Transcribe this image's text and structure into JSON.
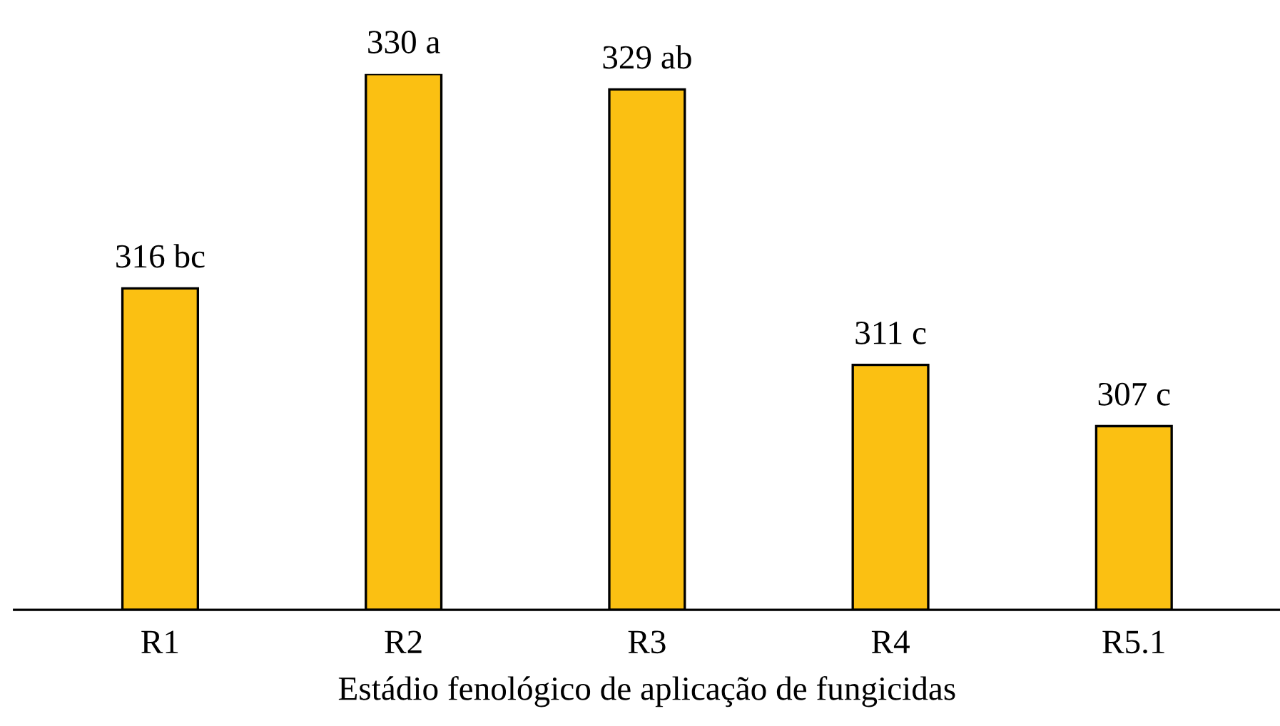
{
  "chart_data": {
    "type": "bar",
    "xlabel": "Estádio fenológico de aplicação de fungicidas",
    "categories": [
      "R1",
      "R2",
      "R3",
      "R4",
      "R5.1"
    ],
    "values": [
      316,
      330,
      329,
      311,
      307
    ],
    "value_labels": [
      "316 bc",
      "330 a",
      "329 ab",
      "311 c",
      "307 c"
    ],
    "color": "#fbc012",
    "ylim": [
      295,
      330
    ],
    "tick_labels": "x",
    "grid": false,
    "legend": false
  }
}
